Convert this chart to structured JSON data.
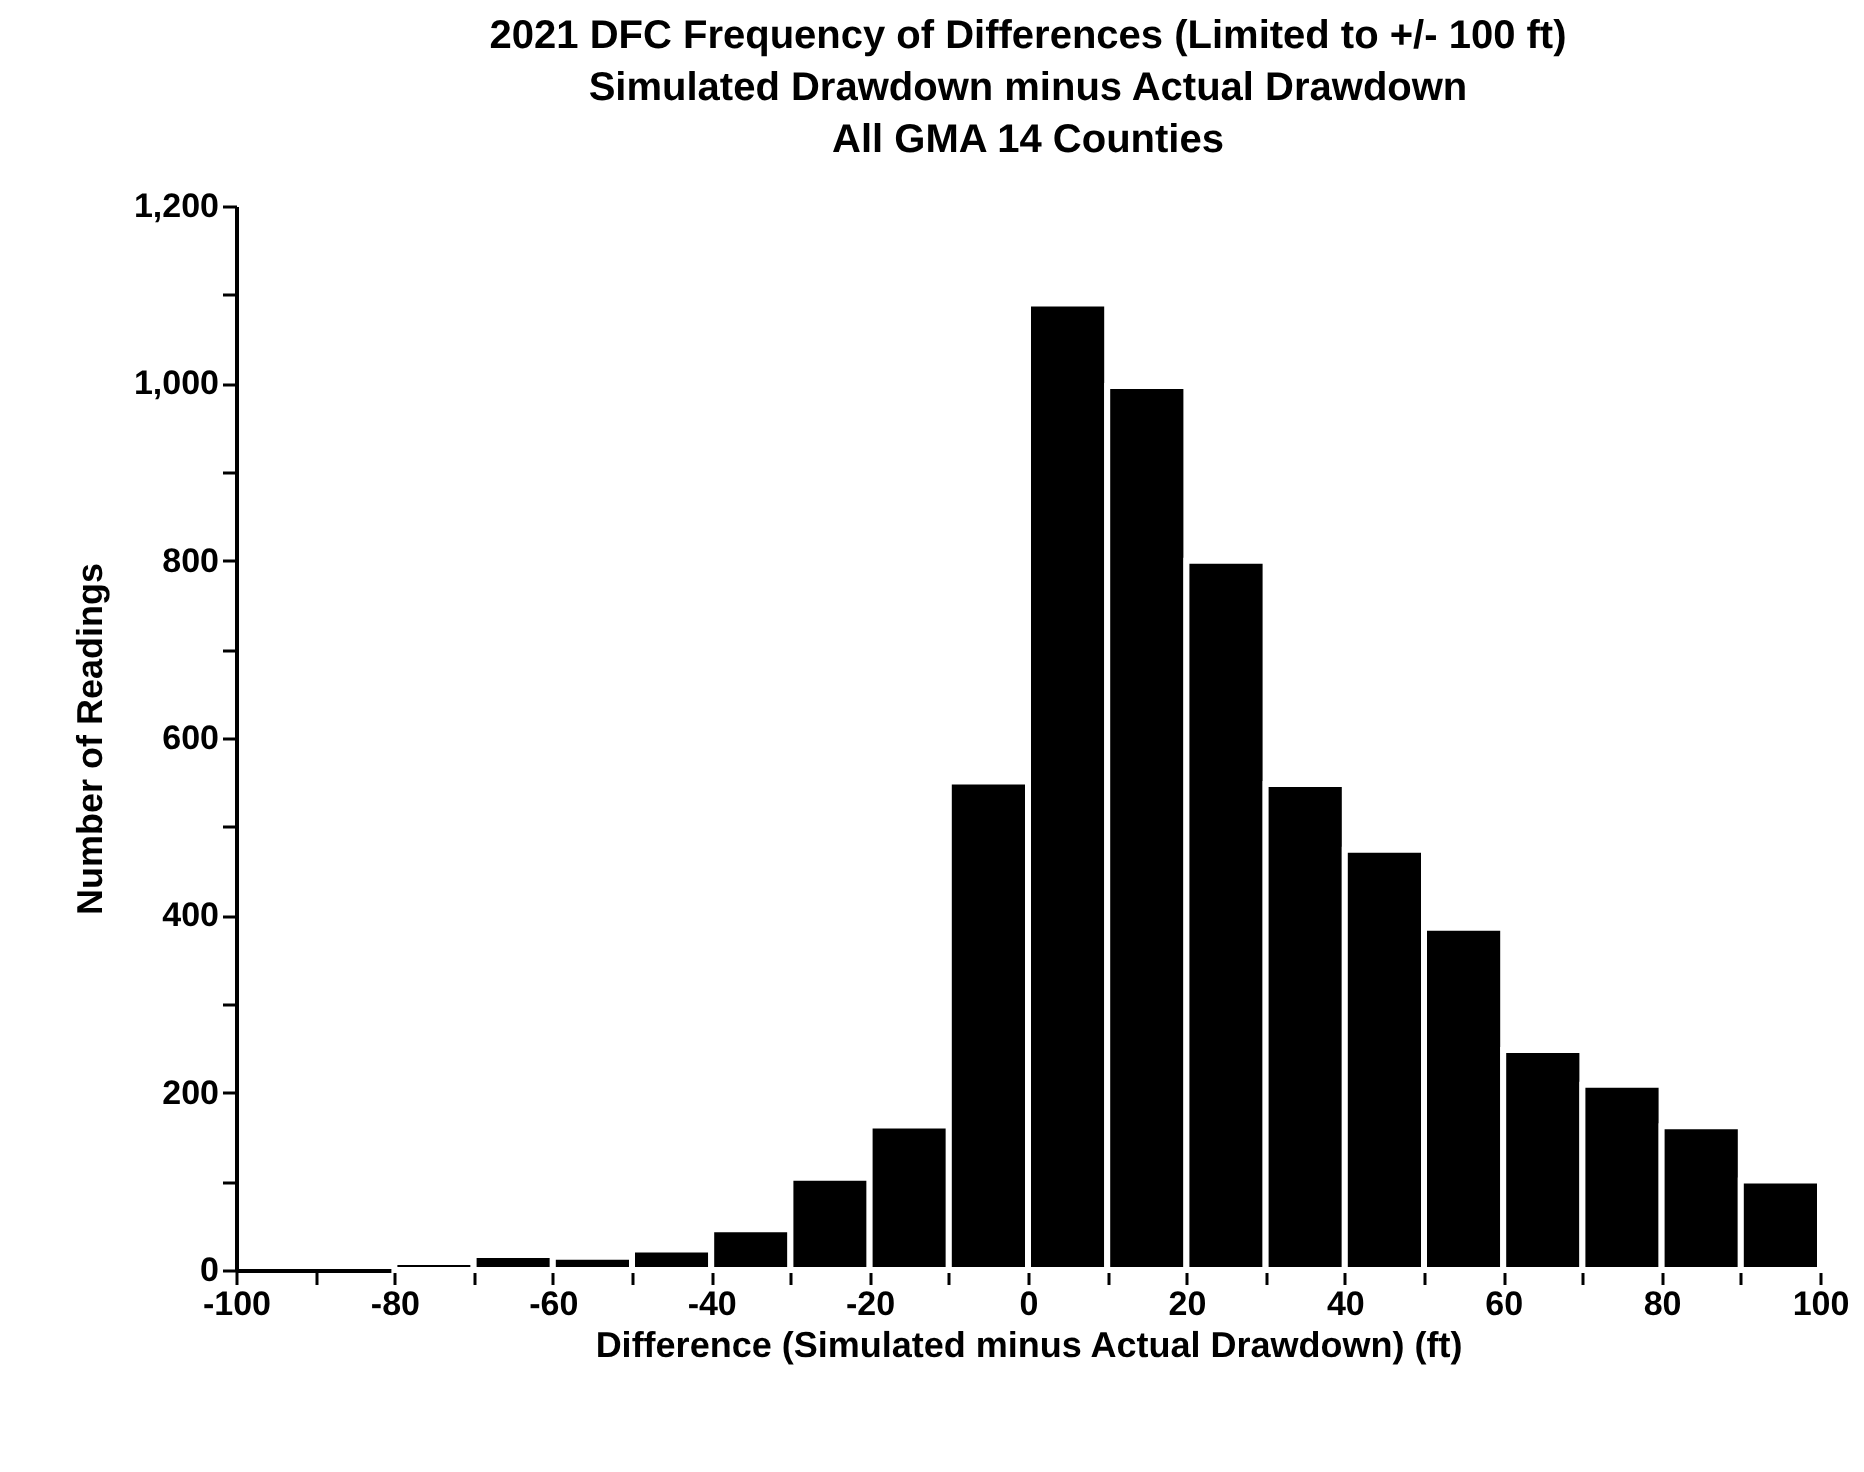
{
  "chart_data": {
    "type": "histogram",
    "title": [
      "2021 DFC Frequency of Differences (Limited to +/- 100 ft)",
      "Simulated Drawdown minus Actual Drawdown",
      "All GMA 14 Counties"
    ],
    "xlabel": "Difference (Simulated minus Actual Drawdown) (ft)",
    "ylabel": "Number of Readings",
    "bins": [
      -100,
      -90,
      -80,
      -70,
      -60,
      -50,
      -40,
      -30,
      -20,
      -10,
      0,
      10,
      20,
      30,
      40,
      50,
      60,
      70,
      80,
      90,
      100
    ],
    "values": [
      0,
      0,
      9,
      17,
      15,
      23,
      46,
      104,
      163,
      551,
      1090,
      997,
      800,
      548,
      474,
      386,
      248,
      209,
      162,
      101
    ],
    "color": "#000000",
    "xlim": [
      -100,
      100
    ],
    "xticks": [
      -100,
      {
        "value": -90,
        "label": null
      },
      -80,
      {
        "value": -70,
        "label": null
      },
      -60,
      {
        "value": -50,
        "label": null
      },
      -40,
      {
        "value": -30,
        "label": null
      },
      -20,
      {
        "value": -10,
        "label": null
      },
      0,
      {
        "value": 10,
        "label": null
      },
      20,
      {
        "value": 30,
        "label": null
      },
      40,
      {
        "value": 50,
        "label": null
      },
      60,
      {
        "value": 70,
        "label": null
      },
      80,
      {
        "value": 90,
        "label": null
      },
      100
    ],
    "ylim": [
      0,
      1200
    ],
    "yticks": [
      0,
      {
        "value": 100,
        "label": null
      },
      200,
      {
        "value": 300,
        "label": null
      },
      400,
      {
        "value": 500,
        "label": null
      },
      600,
      {
        "value": 700,
        "label": null
      },
      800,
      {
        "value": 900,
        "label": null
      },
      {
        "value": 1000,
        "label": "1,000"
      },
      {
        "value": 1100,
        "label": null
      },
      {
        "value": 1200,
        "label": "1,200"
      }
    ],
    "grid": false
  }
}
